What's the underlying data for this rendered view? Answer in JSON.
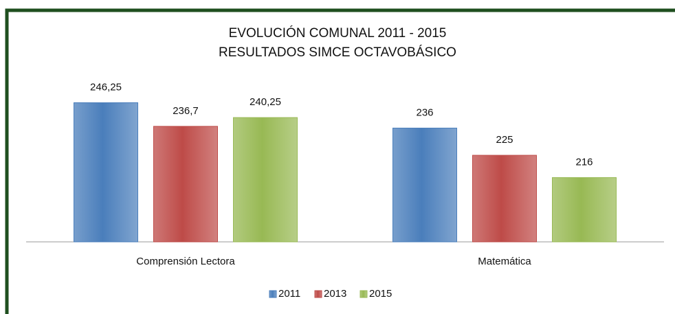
{
  "chart_data": {
    "type": "bar",
    "title": "EVOLUCIÓN COMUNAL 2011 - 2015",
    "subtitle": "RESULTADOS SIMCE OCTAVOBÁSICO",
    "categories": [
      "Comprensión Lectora",
      "Matemática"
    ],
    "series": [
      {
        "name": "2011",
        "color": "#4a7ebb",
        "values": [
          246.25,
          236
        ],
        "value_labels": [
          "246,25",
          "236"
        ]
      },
      {
        "name": "2013",
        "color": "#be4b48",
        "values": [
          236.7,
          225
        ],
        "value_labels": [
          "236,7",
          "225"
        ]
      },
      {
        "name": "2015",
        "color": "#98b954",
        "values": [
          240.25,
          216
        ],
        "value_labels": [
          "240,25",
          "216"
        ]
      }
    ],
    "ylim": [
      190,
      250
    ],
    "legend": "bottom"
  }
}
